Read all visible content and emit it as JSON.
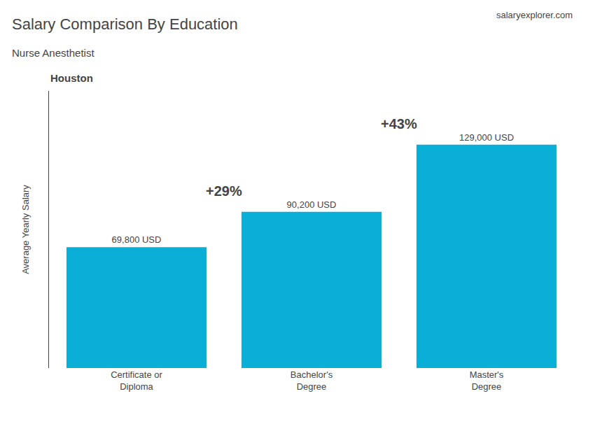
{
  "chart_data": {
    "type": "bar",
    "title": "Salary Comparison By Education",
    "subtitle": "Nurse Anesthetist",
    "annotations": [
      "Houston",
      "salaryexplorer.com"
    ],
    "change_labels": [
      "+29%",
      "+43%"
    ],
    "ylabel": "Average Yearly Salary",
    "categories": [
      "Certificate or\nDiploma",
      "Bachelor's\nDegree",
      "Master's\nDegree"
    ],
    "values": [
      69800,
      90200,
      129000
    ],
    "value_labels": [
      "69,800 USD",
      "90,200 USD",
      "129,000 USD"
    ],
    "data_labels": true,
    "color": "#0aafd7",
    "ylim": [
      0,
      160000
    ],
    "grid": false,
    "tick_labels": "x"
  }
}
